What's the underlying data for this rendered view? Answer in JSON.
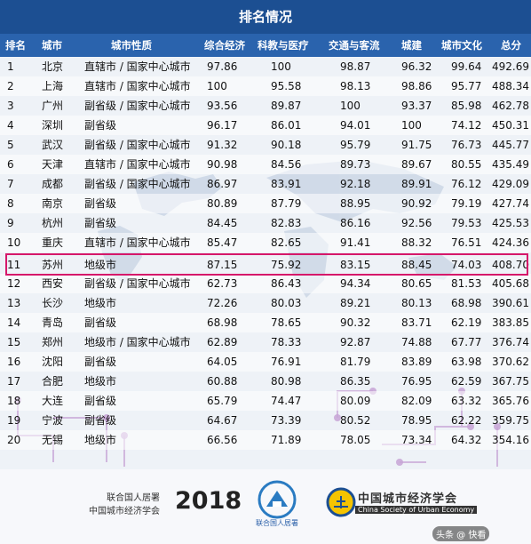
{
  "title": "排名情况",
  "headers": [
    "排名",
    "城市",
    "城市性质",
    "综合经济",
    "科教与医疗",
    "交通与客流",
    "城建",
    "城市文化",
    "总分"
  ],
  "rows": [
    [
      "1",
      "北京",
      "直辖市 / 国家中心城市",
      "97.86",
      "100",
      "98.87",
      "96.32",
      "99.64",
      "492.69"
    ],
    [
      "2",
      "上海",
      "直辖市 / 国家中心城市",
      "100",
      "95.58",
      "98.13",
      "98.86",
      "95.77",
      "488.34"
    ],
    [
      "3",
      "广州",
      "副省级 / 国家中心城市",
      "93.56",
      "89.87",
      "100",
      "93.37",
      "85.98",
      "462.78"
    ],
    [
      "4",
      "深圳",
      "副省级",
      "96.17",
      "86.01",
      "94.01",
      "100",
      "74.12",
      "450.31"
    ],
    [
      "5",
      "武汉",
      "副省级 / 国家中心城市",
      "91.32",
      "90.18",
      "95.79",
      "91.75",
      "76.73",
      "445.77"
    ],
    [
      "6",
      "天津",
      "直辖市 / 国家中心城市",
      "90.98",
      "84.56",
      "89.73",
      "89.67",
      "80.55",
      "435.49"
    ],
    [
      "7",
      "成都",
      "副省级 / 国家中心城市",
      "86.97",
      "83.91",
      "92.18",
      "89.91",
      "76.12",
      "429.09"
    ],
    [
      "8",
      "南京",
      "副省级",
      "80.89",
      "87.79",
      "88.95",
      "90.92",
      "79.19",
      "427.74"
    ],
    [
      "9",
      "杭州",
      "副省级",
      "84.45",
      "82.83",
      "86.16",
      "92.56",
      "79.53",
      "425.53"
    ],
    [
      "10",
      "重庆",
      "直辖市 / 国家中心城市",
      "85.47",
      "82.65",
      "91.41",
      "88.32",
      "76.51",
      "424.36"
    ],
    [
      "11",
      "苏州",
      "地级市",
      "87.15",
      "75.92",
      "83.15",
      "88.45",
      "74.03",
      "408.70"
    ],
    [
      "12",
      "西安",
      "副省级 / 国家中心城市",
      "62.73",
      "86.43",
      "94.34",
      "80.65",
      "81.53",
      "405.68"
    ],
    [
      "13",
      "长沙",
      "地级市",
      "72.26",
      "80.03",
      "89.21",
      "80.13",
      "68.98",
      "390.61"
    ],
    [
      "14",
      "青岛",
      "副省级",
      "68.98",
      "78.65",
      "90.32",
      "83.71",
      "62.19",
      "383.85"
    ],
    [
      "15",
      "郑州",
      "地级市 / 国家中心城市",
      "62.89",
      "78.33",
      "92.87",
      "74.88",
      "67.77",
      "376.74"
    ],
    [
      "16",
      "沈阳",
      "副省级",
      "64.05",
      "76.91",
      "81.79",
      "83.89",
      "63.98",
      "370.62"
    ],
    [
      "17",
      "合肥",
      "地级市",
      "60.88",
      "80.98",
      "86.35",
      "76.95",
      "62.59",
      "367.75"
    ],
    [
      "18",
      "大连",
      "副省级",
      "65.79",
      "74.47",
      "80.09",
      "82.09",
      "63.32",
      "365.76"
    ],
    [
      "19",
      "宁波",
      "副省级",
      "64.67",
      "73.39",
      "80.52",
      "78.95",
      "62.22",
      "359.75"
    ],
    [
      "20",
      "无锡",
      "地级市",
      "66.56",
      "71.89",
      "78.05",
      "73.34",
      "64.32",
      "354.16"
    ]
  ],
  "highlight_rank": "11",
  "footer": {
    "org_line1": "联合国人居署",
    "org_line2": "中国城市经济学会",
    "year": "2018",
    "un_caption": "联合国人居署",
    "csue_cn": "中国城市经济学会",
    "csue_en": "China Society of Urban Economy",
    "watermark": "头条 @ 快看"
  },
  "colors": {
    "title_bg": "#1c4f92",
    "header_bg": "#2a63ad",
    "highlight": "#d6186a"
  }
}
